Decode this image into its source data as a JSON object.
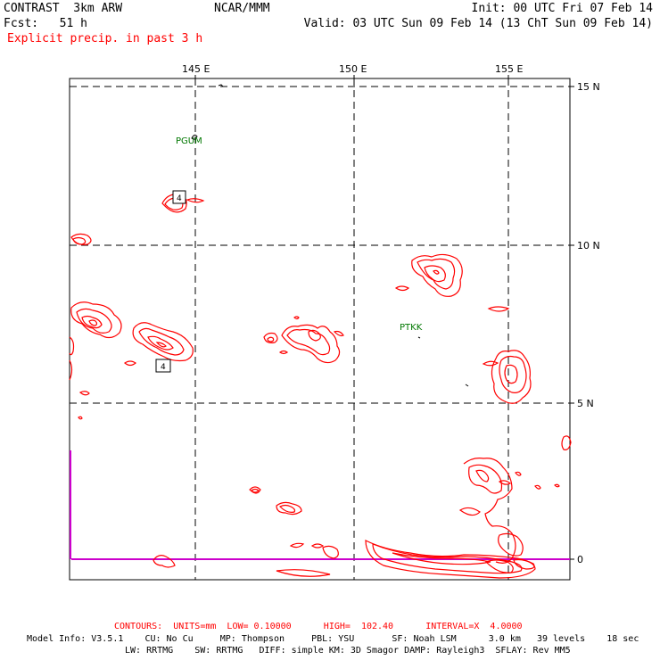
{
  "header": {
    "model": "CONTRAST  3km ARW",
    "fcst": "Fcst:   51 h",
    "field": "Explicit precip. in past 3 h",
    "org": "NCAR/MMM",
    "init": "Init: 00 UTC Fri 07 Feb 14",
    "valid": "Valid: 03 UTC Sun 09 Feb 14 (13 ChT Sun 09 Feb 14)"
  },
  "axes": {
    "lon_labels": [
      "145 E",
      "150 E",
      "155 E"
    ],
    "lat_labels": [
      "15 N",
      "10 N",
      "5 N",
      "0"
    ]
  },
  "stations": [
    "PGUM",
    "PTKK"
  ],
  "hl_labels": [
    "4",
    "4"
  ],
  "footer": {
    "contours": "CONTOURS:  UNITS=mm  LOW= 0.10000      HIGH=  102.40      INTERVAL=X  4.0000",
    "info1": "Model Info: V3.5.1    CU: No Cu     MP: Thompson     PBL: YSU       SF: Noah LSM      3.0 km   39 levels    18 sec",
    "info2": "LW: RRTMG    SW: RRTMG   DIFF: simple KM: 3D Smagor DAMP: Rayleigh3  SFLAY: Rev MM5"
  },
  "colors": {
    "contour": "#ff0000",
    "station": "#007700",
    "equator": "#cc00cc",
    "grid": "#000000"
  }
}
